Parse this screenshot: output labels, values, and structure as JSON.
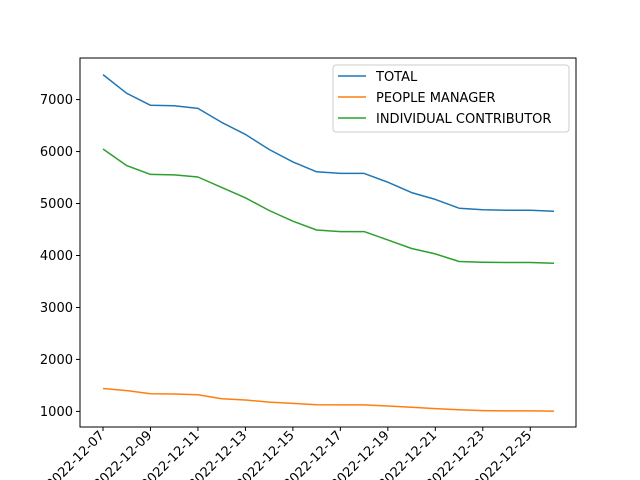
{
  "chart_data": {
    "type": "line",
    "title": "",
    "xlabel": "",
    "ylabel": "",
    "x": [
      "2022-12-07",
      "2022-12-08",
      "2022-12-09",
      "2022-12-10",
      "2022-12-11",
      "2022-12-12",
      "2022-12-13",
      "2022-12-14",
      "2022-12-15",
      "2022-12-16",
      "2022-12-17",
      "2022-12-18",
      "2022-12-19",
      "2022-12-20",
      "2022-12-21",
      "2022-12-22",
      "2022-12-23",
      "2022-12-24",
      "2022-12-25",
      "2022-12-26"
    ],
    "x_tick_labels": [
      "2022-12-07",
      "2022-12-09",
      "2022-12-11",
      "2022-12-13",
      "2022-12-15",
      "2022-12-17",
      "2022-12-19",
      "2022-12-21",
      "2022-12-23",
      "2022-12-25"
    ],
    "y_ticks": [
      1000,
      2000,
      3000,
      4000,
      5000,
      6000,
      7000
    ],
    "ylim": [
      700,
      7800
    ],
    "grid": false,
    "legend_position": "upper-right",
    "series": [
      {
        "name": "TOTAL",
        "color": "#1f77b4",
        "values": [
          7480,
          7120,
          6890,
          6880,
          6830,
          6560,
          6330,
          6040,
          5800,
          5610,
          5580,
          5580,
          5410,
          5210,
          5080,
          4910,
          4880,
          4870,
          4870,
          4850
        ]
      },
      {
        "name": "PEOPLE MANAGER",
        "color": "#ff7f0e",
        "values": [
          1440,
          1400,
          1340,
          1335,
          1320,
          1245,
          1220,
          1180,
          1155,
          1130,
          1125,
          1125,
          1105,
          1080,
          1055,
          1030,
          1015,
          1010,
          1010,
          1005
        ]
      },
      {
        "name": "INDIVIDUAL CONTRIBUTOR",
        "color": "#2ca02c",
        "values": [
          6050,
          5730,
          5560,
          5550,
          5510,
          5310,
          5110,
          4865,
          4660,
          4490,
          4460,
          4460,
          4300,
          4135,
          4030,
          3885,
          3870,
          3865,
          3865,
          3850
        ]
      }
    ]
  }
}
